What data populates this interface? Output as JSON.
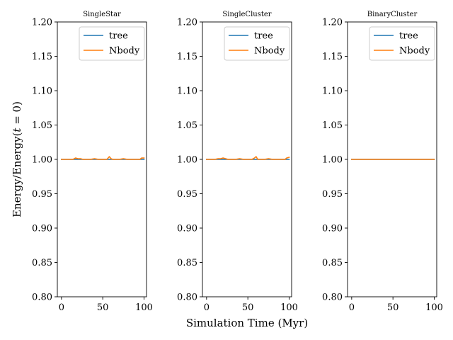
{
  "figure": {
    "ylabel": "Energy/Energy(t = 0)",
    "ylabel_parts": {
      "main": "Energy/Energy(",
      "var": "t",
      "rest": " = 0)"
    },
    "xlabel": "Simulation Time (Myr)"
  },
  "chart_data": [
    {
      "type": "line",
      "title": "SingleStar",
      "xlim": [
        -5,
        103
      ],
      "ylim": [
        0.8,
        1.2
      ],
      "xticks": [
        0,
        50,
        100
      ],
      "yticks": [
        0.8,
        0.85,
        0.9,
        0.95,
        1.0,
        1.05,
        1.1,
        1.15,
        1.2
      ],
      "grid": false,
      "legend_position": "top-right",
      "series": [
        {
          "name": "tree",
          "color": "#1f77b4",
          "x": [
            0,
            5,
            10,
            15,
            20,
            25,
            30,
            35,
            40,
            45,
            50,
            55,
            60,
            65,
            70,
            75,
            80,
            85,
            90,
            95,
            100
          ],
          "y": [
            1.0,
            1.0,
            1.0,
            1.0,
            1.0,
            1.0,
            1.0,
            1.0,
            1.0,
            1.0,
            1.0,
            1.0,
            1.0,
            1.0,
            1.0,
            1.0,
            1.0,
            1.0,
            1.0,
            1.0,
            1.0
          ]
        },
        {
          "name": "Nbody",
          "color": "#ff7f0e",
          "x": [
            0,
            5,
            10,
            14,
            17,
            20,
            23,
            26,
            30,
            35,
            40,
            45,
            50,
            55,
            58,
            60,
            62,
            65,
            70,
            75,
            80,
            85,
            90,
            95,
            97,
            100
          ],
          "y": [
            1.0,
            1.0,
            1.0,
            1.0,
            1.002,
            1.001,
            1.001,
            1.0,
            1.0,
            1.0,
            1.001,
            1.0,
            1.0,
            1.0,
            1.004,
            1.001,
            1.0,
            1.0,
            1.0,
            1.001,
            1.0,
            1.0,
            1.0,
            1.0,
            1.002,
            1.002
          ]
        }
      ]
    },
    {
      "type": "line",
      "title": "SingleCluster",
      "xlim": [
        -5,
        103
      ],
      "ylim": [
        0.8,
        1.2
      ],
      "xticks": [
        0,
        50,
        100
      ],
      "yticks": [
        0.8,
        0.85,
        0.9,
        0.95,
        1.0,
        1.05,
        1.1,
        1.15,
        1.2
      ],
      "grid": false,
      "legend_position": "top-right",
      "series": [
        {
          "name": "tree",
          "color": "#1f77b4",
          "x": [
            0,
            5,
            10,
            15,
            20,
            25,
            30,
            35,
            40,
            45,
            50,
            55,
            60,
            65,
            70,
            75,
            80,
            85,
            90,
            95,
            100
          ],
          "y": [
            1.0,
            1.0,
            1.0,
            1.0,
            1.0,
            1.0,
            1.0,
            1.0,
            1.0,
            1.0,
            1.0,
            1.0,
            1.0,
            1.0,
            1.0,
            1.0,
            1.0,
            1.0,
            1.0,
            1.0,
            1.0
          ]
        },
        {
          "name": "Nbody",
          "color": "#ff7f0e",
          "x": [
            0,
            5,
            10,
            14,
            17,
            20,
            23,
            26,
            30,
            35,
            40,
            45,
            50,
            55,
            58,
            60,
            62,
            65,
            70,
            75,
            80,
            85,
            90,
            95,
            97,
            100
          ],
          "y": [
            1.0,
            1.0,
            1.0,
            1.001,
            1.001,
            1.002,
            1.001,
            1.0,
            1.0,
            1.0,
            1.001,
            1.0,
            1.0,
            1.0,
            1.002,
            1.004,
            1.0,
            1.0,
            1.0,
            1.001,
            1.0,
            1.0,
            1.0,
            1.0,
            1.002,
            1.003
          ]
        }
      ]
    },
    {
      "type": "line",
      "title": "BinaryCluster",
      "xlim": [
        -5,
        103
      ],
      "ylim": [
        0.8,
        1.2
      ],
      "xticks": [
        0,
        50,
        100
      ],
      "yticks": [
        0.8,
        0.85,
        0.9,
        0.95,
        1.0,
        1.05,
        1.1,
        1.15,
        1.2
      ],
      "grid": false,
      "legend_position": "top-right",
      "series": [
        {
          "name": "tree",
          "color": "#1f77b4",
          "x": [
            0,
            25,
            50,
            75,
            100
          ],
          "y": [
            1.0,
            1.0,
            1.0,
            1.0,
            1.0
          ]
        },
        {
          "name": "Nbody",
          "color": "#ff7f0e",
          "x": [
            0,
            25,
            50,
            75,
            100
          ],
          "y": [
            1.0,
            1.0,
            1.0,
            1.0,
            1.0
          ]
        }
      ]
    }
  ]
}
